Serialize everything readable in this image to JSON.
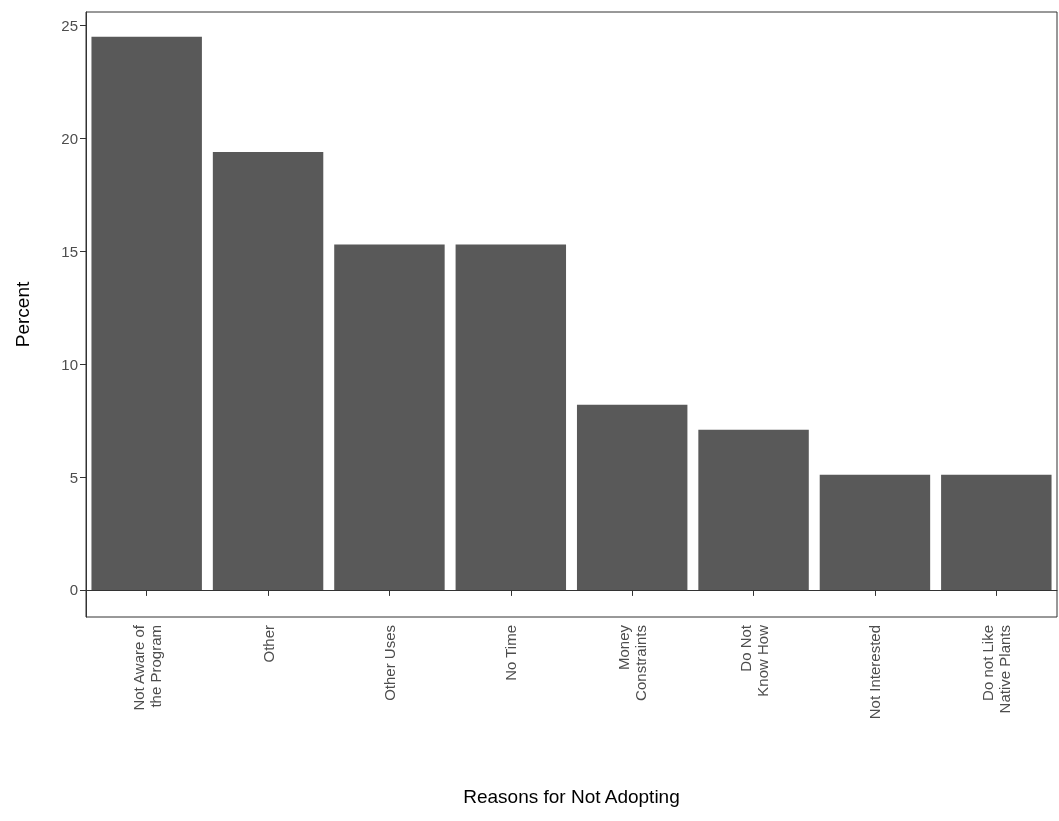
{
  "chart_data": {
    "type": "bar",
    "xlabel": "Reasons for Not Adopting",
    "ylabel": "Percent",
    "categories": [
      "Not Aware of\nthe Program",
      "Other",
      "Other Uses",
      "No Time",
      "Money\nConstraints",
      "Do Not\nKnow How",
      "Not Interested",
      "Do not Like\nNative Plants"
    ],
    "values": [
      24.5,
      19.4,
      15.3,
      15.3,
      8.2,
      7.1,
      5.1,
      5.1
    ],
    "color": "#595959",
    "ylim": [
      -1.2,
      25.6
    ],
    "yticks": [
      0,
      5,
      10,
      15,
      20,
      25
    ]
  }
}
